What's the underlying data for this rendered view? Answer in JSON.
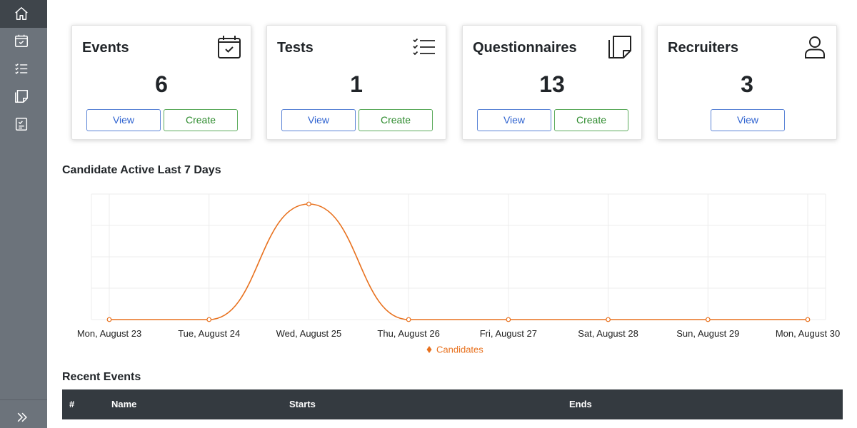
{
  "sidebar": {
    "items": [
      {
        "name": "home-icon"
      },
      {
        "name": "calendar-check-icon"
      },
      {
        "name": "checklist-icon"
      },
      {
        "name": "sticky-note-icon"
      },
      {
        "name": "clipboard-check-icon"
      }
    ],
    "expand_icon": "double-chevron-right-icon"
  },
  "cards": [
    {
      "title": "Events",
      "count": "6",
      "icon": "calendar-check-icon",
      "view_label": "View",
      "create_label": "Create"
    },
    {
      "title": "Tests",
      "count": "1",
      "icon": "checklist-icon",
      "view_label": "View",
      "create_label": "Create"
    },
    {
      "title": "Questionnaires",
      "count": "13",
      "icon": "sticky-note-icon",
      "view_label": "View",
      "create_label": "Create"
    },
    {
      "title": "Recruiters",
      "count": "3",
      "icon": "person-icon",
      "view_label": "View"
    }
  ],
  "chart_section": {
    "title": "Candidate Active Last 7 Days"
  },
  "chart_data": {
    "type": "line",
    "categories": [
      "Mon, August 23",
      "Tue, August 24",
      "Wed, August 25",
      "Thu, August 26",
      "Fri, August 27",
      "Sat, August 28",
      "Sun, August 29",
      "Mon, August 30"
    ],
    "series": [
      {
        "name": "Candidates",
        "values": [
          0,
          0,
          1,
          0,
          0,
          0,
          0,
          0
        ],
        "color": "#e8711e"
      }
    ],
    "ylim": [
      0,
      1
    ],
    "grid": true,
    "legend": "bottom-center"
  },
  "recent_events": {
    "title": "Recent Events",
    "columns": [
      "#",
      "Name",
      "Starts",
      "Ends"
    ]
  },
  "colors": {
    "sidebar": "#6c737b",
    "sidebar_active": "#3f454b",
    "view_button": "#2f63d0",
    "create_button": "#2e8b2e",
    "table_header": "#343a40",
    "chart_line": "#e8711e"
  }
}
